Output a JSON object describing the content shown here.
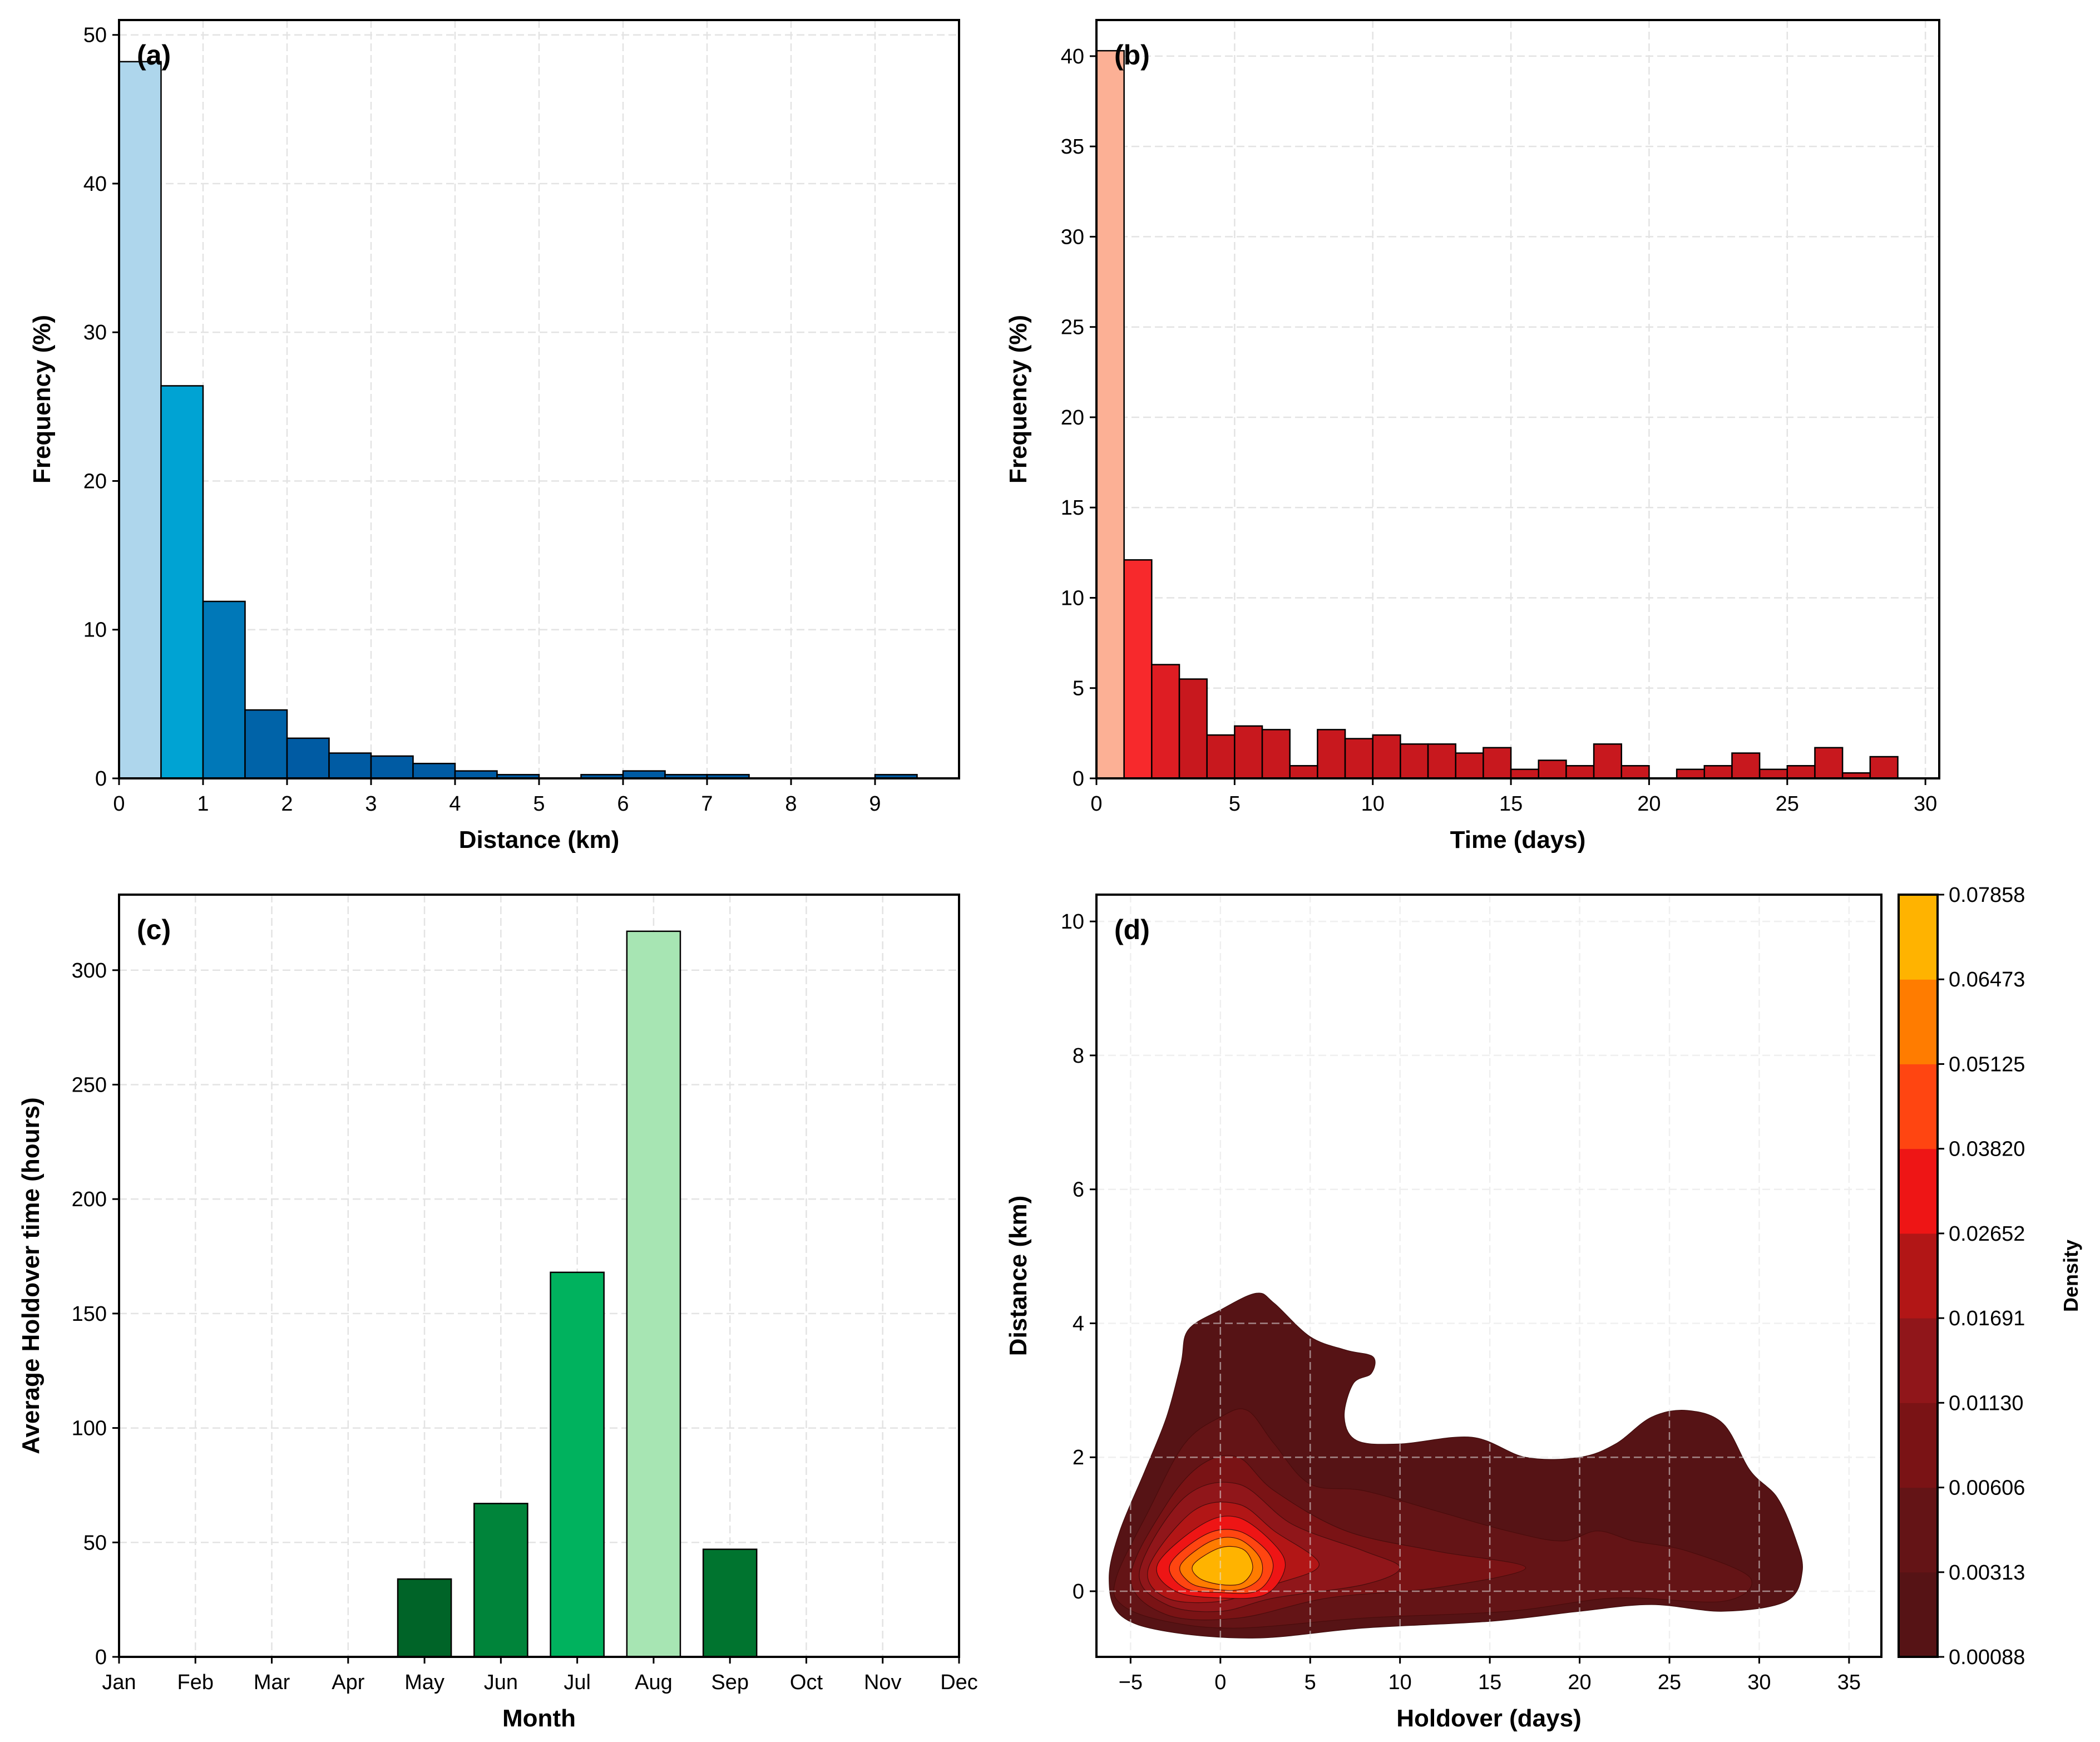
{
  "chart_data": [
    {
      "type": "bar",
      "panel": "(a)",
      "xlabel": "Distance (km)",
      "ylabel": "Frequency (%)",
      "xlim": [
        0,
        10
      ],
      "ylim": [
        0,
        51
      ],
      "xticks": [
        0,
        1,
        2,
        3,
        4,
        5,
        6,
        7,
        8,
        9
      ],
      "yticks": [
        0,
        10,
        20,
        30,
        40,
        50
      ],
      "bin_width": 0.5,
      "bin_starts": [
        0,
        0.5,
        1,
        1.5,
        2,
        2.5,
        3,
        3.5,
        4,
        4.5,
        5,
        5.5,
        6,
        6.5,
        7,
        7.5,
        8,
        8.5,
        9
      ],
      "values": [
        48.2,
        26.4,
        11.9,
        4.6,
        2.7,
        1.7,
        1.5,
        1.0,
        0.5,
        0.25,
        0,
        0.25,
        0.5,
        0.25,
        0.25,
        0,
        0,
        0,
        0.25
      ],
      "colors": [
        "#aed6ec",
        "#00a3d3",
        "#0078b8",
        "#0063a8",
        "#005ba3"
      ],
      "grid": true
    },
    {
      "type": "bar",
      "panel": "(b)",
      "xlabel": "Time (days)",
      "ylabel": "Frequency (%)",
      "xlim": [
        0,
        30.5
      ],
      "ylim": [
        0,
        42
      ],
      "xticks": [
        0,
        5,
        10,
        15,
        20,
        25,
        30
      ],
      "yticks": [
        0,
        5,
        10,
        15,
        20,
        25,
        30,
        35,
        40
      ],
      "bin_width": 1,
      "values": [
        40.3,
        12.1,
        6.3,
        5.5,
        2.4,
        2.9,
        2.7,
        0.7,
        2.7,
        2.2,
        2.4,
        1.9,
        1.9,
        1.4,
        1.7,
        0.5,
        1.0,
        0.7,
        1.9,
        0.7,
        0,
        0.5,
        0.7,
        1.4,
        0.5,
        0.7,
        1.7,
        0.3,
        1.2
      ],
      "colors": [
        "#fcb095",
        "#f7292c",
        "#de1d23",
        "#c8181e"
      ],
      "grid": true
    },
    {
      "type": "bar",
      "panel": "(c)",
      "xlabel": "Month",
      "ylabel": "Average Holdover time (hours)",
      "categories": [
        "Jan",
        "Feb",
        "Mar",
        "Apr",
        "May",
        "Jun",
        "Jul",
        "Aug",
        "Sep",
        "Oct",
        "Nov",
        "Dec"
      ],
      "values": [
        0,
        0,
        0,
        0,
        34,
        67,
        168,
        317,
        47,
        0,
        0,
        0
      ],
      "bar_colors": {
        "May": "#006428",
        "Jun": "#00843a",
        "Jul": "#00b25e",
        "Aug": "#a7e5b3",
        "Sep": "#00742f"
      },
      "ylim": [
        0,
        333
      ],
      "yticks": [
        0,
        50,
        100,
        150,
        200,
        250,
        300
      ],
      "grid": true
    },
    {
      "type": "contour",
      "panel": "(d)",
      "xlabel": "Holdover (days)",
      "ylabel": "Distance (km)",
      "xlim": [
        -6.9,
        36.8
      ],
      "ylim": [
        -0.98,
        10.4
      ],
      "xticks": [
        -5,
        0,
        5,
        10,
        15,
        20,
        25,
        30,
        35
      ],
      "xtick_labels": [
        "−5",
        "0",
        "5",
        "10",
        "15",
        "20",
        "25",
        "30",
        "35"
      ],
      "yticks": [
        0,
        2,
        4,
        6,
        8,
        10
      ],
      "peak": [
        0.8,
        0.4
      ],
      "colorbar": {
        "label": "Density",
        "levels": [
          "0.00088",
          "0.00313",
          "0.00606",
          "0.01130",
          "0.01691",
          "0.02652",
          "0.03820",
          "0.05125",
          "0.06473",
          "0.07858"
        ],
        "colors": [
          "#561315",
          "#641416",
          "#7a1315",
          "#90161a",
          "#b21616",
          "#ee1515",
          "#ff4511",
          "#ff7c00",
          "#ffb300"
        ]
      },
      "outer_contour": [
        [
          -6.2,
          0.2
        ],
        [
          -5.6,
          0.9
        ],
        [
          -4.2,
          1.8
        ],
        [
          -3,
          2.6
        ],
        [
          -2.2,
          3.4
        ],
        [
          -1.8,
          3.9
        ],
        [
          0,
          4.2
        ],
        [
          2,
          4.45
        ],
        [
          3,
          4.3
        ],
        [
          5,
          3.8
        ],
        [
          7,
          3.6
        ],
        [
          8.5,
          3.5
        ],
        [
          8.4,
          3.25
        ],
        [
          7.4,
          3.1
        ],
        [
          6.9,
          2.6
        ],
        [
          7.6,
          2.25
        ],
        [
          10,
          2.2
        ],
        [
          14,
          2.3
        ],
        [
          17,
          2.0
        ],
        [
          20,
          2.0
        ],
        [
          22,
          2.2
        ],
        [
          24,
          2.6
        ],
        [
          26,
          2.7
        ],
        [
          28,
          2.5
        ],
        [
          29.5,
          1.8
        ],
        [
          31,
          1.4
        ],
        [
          32,
          0.8
        ],
        [
          32.4,
          0.3
        ],
        [
          31.5,
          -0.15
        ],
        [
          28,
          -0.3
        ],
        [
          24,
          -0.2
        ],
        [
          20,
          -0.3
        ],
        [
          15,
          -0.45
        ],
        [
          8,
          -0.55
        ],
        [
          2,
          -0.7
        ],
        [
          -3,
          -0.6
        ],
        [
          -5.6,
          -0.35
        ]
      ],
      "inner_contours": [
        [
          [
            -5.8,
            0.2
          ],
          [
            -4,
            1.2
          ],
          [
            -2,
            2.2
          ],
          [
            0,
            2.6
          ],
          [
            1.5,
            2.7
          ],
          [
            3,
            2.2
          ],
          [
            5,
            1.6
          ],
          [
            8,
            1.5
          ],
          [
            12,
            1.2
          ],
          [
            16,
            0.9
          ],
          [
            19,
            0.75
          ],
          [
            21,
            0.9
          ],
          [
            23,
            0.75
          ],
          [
            26,
            0.6
          ],
          [
            29.5,
            0.2
          ],
          [
            28,
            -0.15
          ],
          [
            22,
            -0.1
          ],
          [
            16,
            -0.3
          ],
          [
            8,
            -0.4
          ],
          [
            1,
            -0.55
          ],
          [
            -3,
            -0.45
          ],
          [
            -5.5,
            -0.2
          ]
        ],
        [
          [
            -5,
            0.2
          ],
          [
            -3,
            1.3
          ],
          [
            -1,
            1.9
          ],
          [
            1,
            2.0
          ],
          [
            3,
            1.5
          ],
          [
            7,
            0.9
          ],
          [
            12,
            0.6
          ],
          [
            17,
            0.35
          ],
          [
            12,
            0.05
          ],
          [
            6,
            -0.1
          ],
          [
            1,
            -0.4
          ],
          [
            -3,
            -0.35
          ]
        ],
        [
          [
            -4.5,
            0.3
          ],
          [
            -2,
            1.4
          ],
          [
            1,
            1.6
          ],
          [
            4,
            1.0
          ],
          [
            8,
            0.6
          ],
          [
            10,
            0.35
          ],
          [
            8,
            0.1
          ],
          [
            3,
            -0.1
          ],
          [
            0,
            -0.3
          ],
          [
            -3,
            -0.2
          ]
        ],
        [
          [
            -4,
            0.35
          ],
          [
            -1.5,
            1.2
          ],
          [
            1,
            1.3
          ],
          [
            3,
            0.9
          ],
          [
            5.5,
            0.4
          ],
          [
            3,
            0.1
          ],
          [
            0,
            -0.15
          ],
          [
            -3,
            -0.1
          ]
        ],
        [
          [
            -3.5,
            0.4
          ],
          [
            -1,
            1.0
          ],
          [
            1,
            1.1
          ],
          [
            3,
            0.7
          ],
          [
            3.6,
            0.35
          ],
          [
            2.5,
            -0.05
          ],
          [
            0,
            -0.1
          ],
          [
            -2.5,
            0
          ]
        ],
        [
          [
            -2.8,
            0.4
          ],
          [
            -0.8,
            0.85
          ],
          [
            1,
            0.9
          ],
          [
            2.6,
            0.6
          ],
          [
            2.9,
            0.3
          ],
          [
            2,
            0
          ],
          [
            0,
            -0.02
          ],
          [
            -2,
            0.05
          ]
        ],
        [
          [
            -2.2,
            0.4
          ],
          [
            -0.5,
            0.75
          ],
          [
            1,
            0.78
          ],
          [
            2.2,
            0.5
          ],
          [
            2.2,
            0.2
          ],
          [
            1,
            0.02
          ],
          [
            -0.8,
            0.05
          ],
          [
            -1.8,
            0.15
          ]
        ],
        [
          [
            -1.5,
            0.4
          ],
          [
            0,
            0.65
          ],
          [
            1.3,
            0.62
          ],
          [
            1.8,
            0.35
          ],
          [
            1.2,
            0.12
          ],
          [
            0,
            0.1
          ],
          [
            -1.2,
            0.2
          ]
        ]
      ]
    }
  ]
}
